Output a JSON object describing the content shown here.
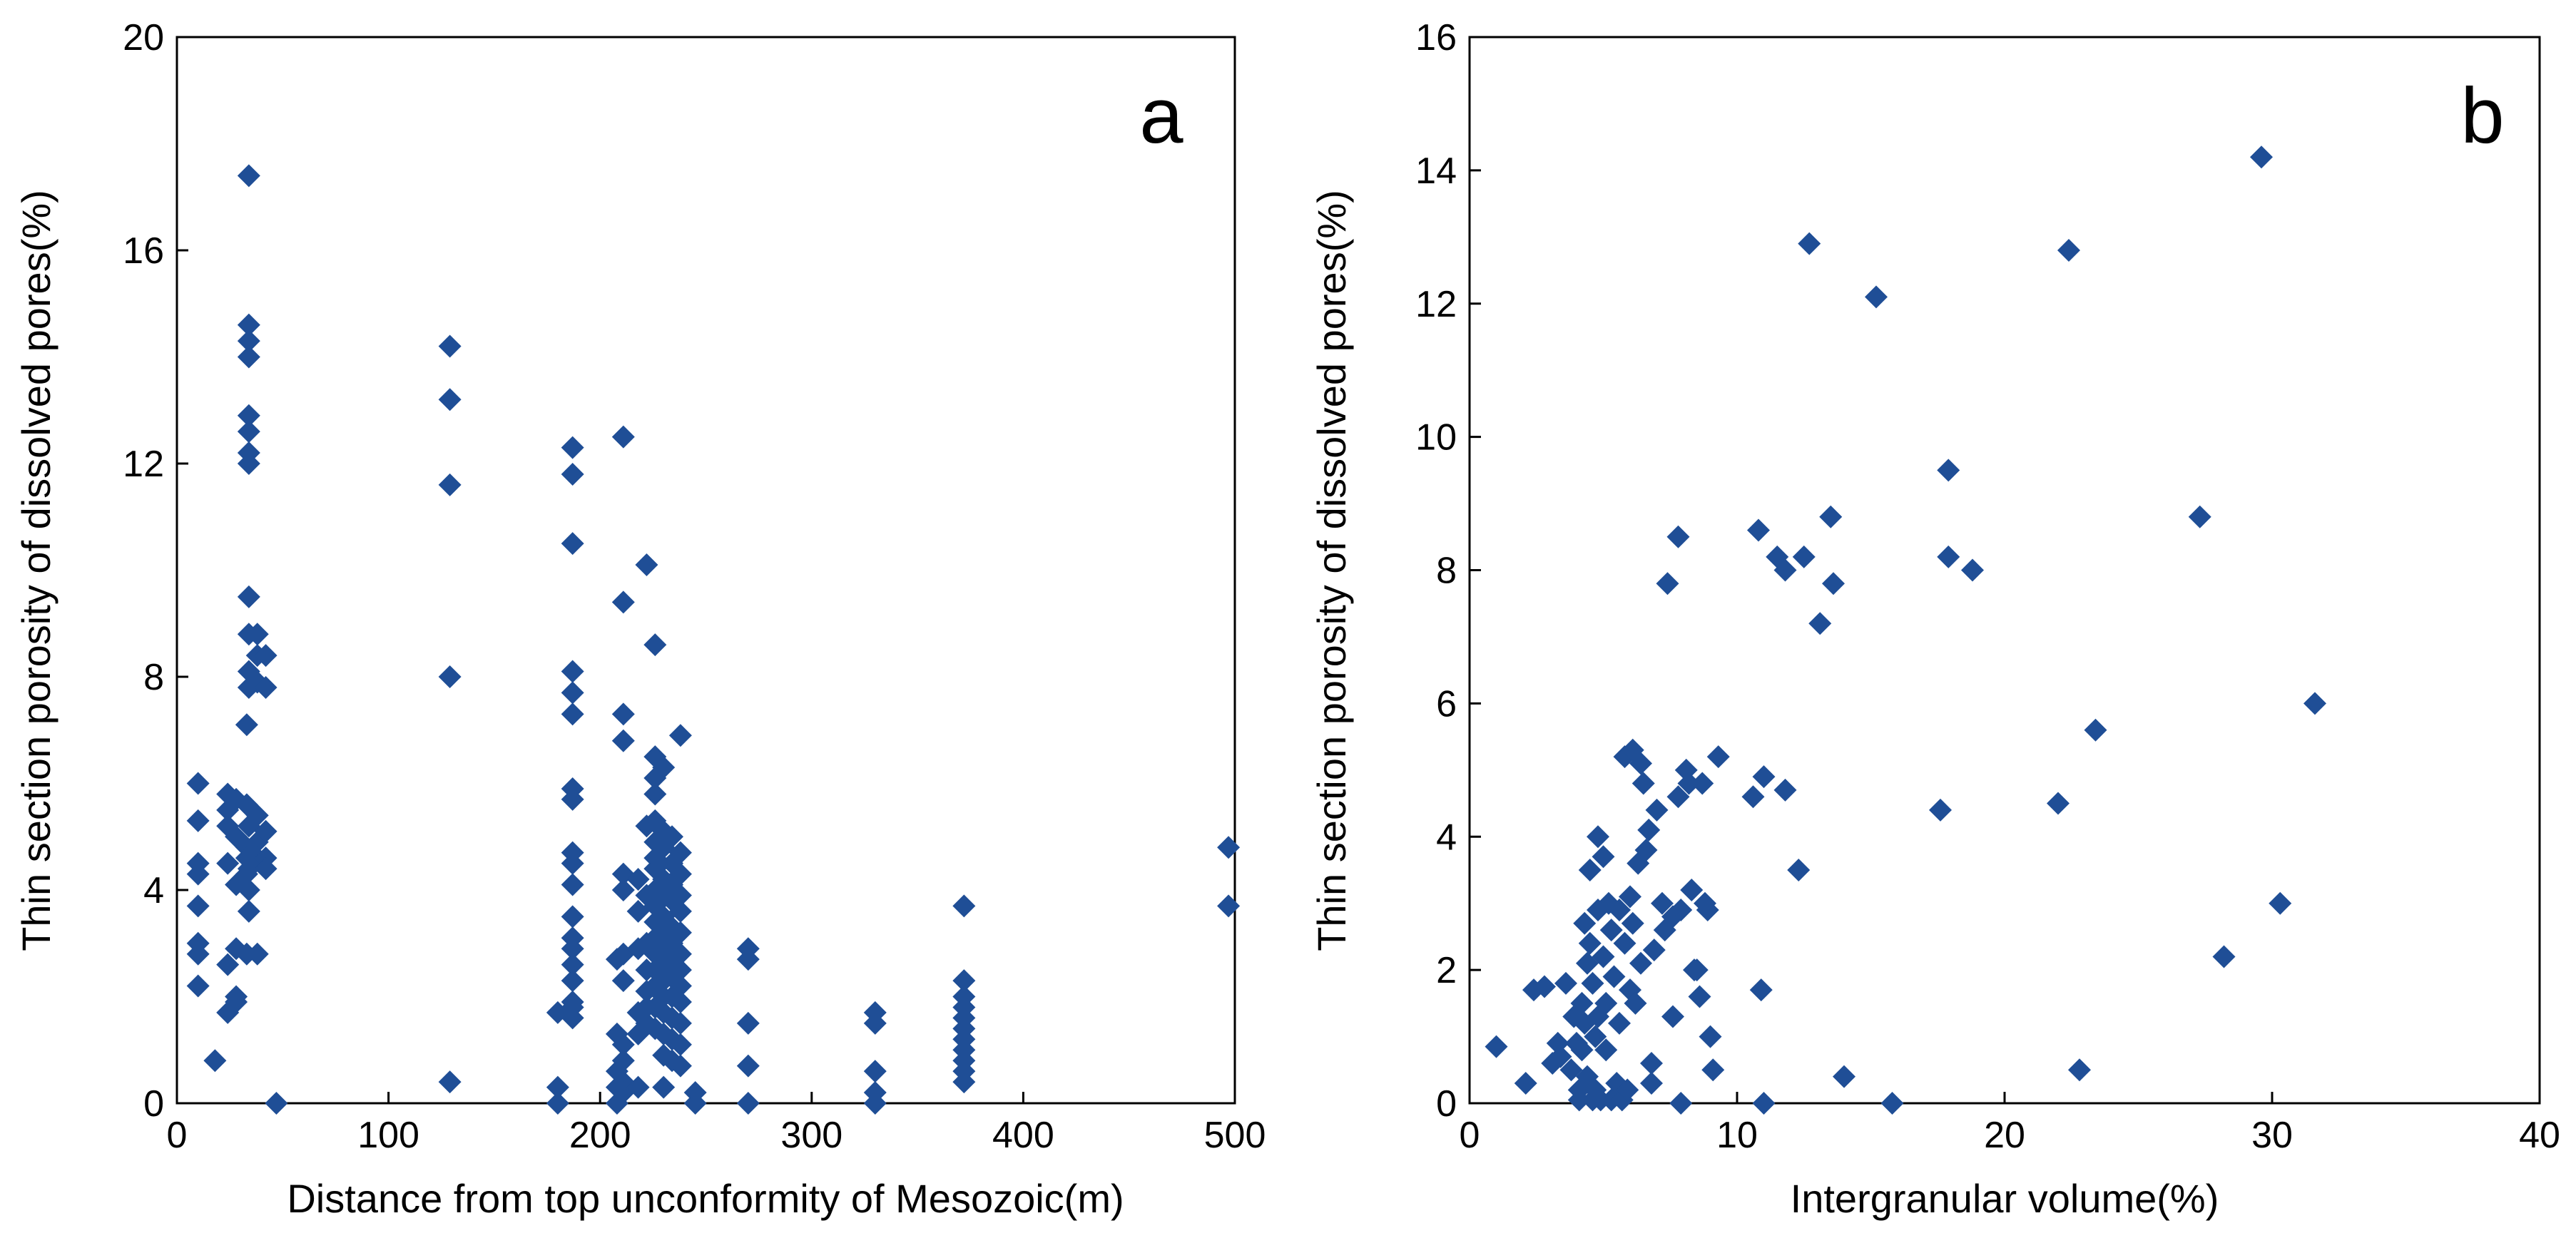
{
  "chart_data": [
    {
      "type": "scatter",
      "panel_label": "a",
      "title": "",
      "xlabel": "Distance from top unconformity of Mesozoic(m)",
      "ylabel": "Thin section porosity of dissolved pores(%)",
      "xlim": [
        0,
        500
      ],
      "ylim": [
        0,
        20
      ],
      "xticks": [
        0,
        100,
        200,
        300,
        400,
        500
      ],
      "yticks": [
        0,
        4,
        8,
        12,
        16,
        20
      ],
      "marker": "diamond",
      "color": "#1f4e96",
      "grid": false,
      "points": [
        [
          10,
          6.0
        ],
        [
          10,
          5.3
        ],
        [
          10,
          4.5
        ],
        [
          10,
          4.3
        ],
        [
          10,
          3.7
        ],
        [
          10,
          3.0
        ],
        [
          10,
          2.8
        ],
        [
          10,
          2.2
        ],
        [
          18,
          0.8
        ],
        [
          24,
          5.8
        ],
        [
          24,
          5.5
        ],
        [
          24,
          5.2
        ],
        [
          24,
          4.5
        ],
        [
          24,
          2.6
        ],
        [
          24,
          1.7
        ],
        [
          28,
          5.7
        ],
        [
          28,
          5.0
        ],
        [
          28,
          4.1
        ],
        [
          28,
          2.9
        ],
        [
          28,
          2.0
        ],
        [
          28,
          1.9
        ],
        [
          33,
          7.1
        ],
        [
          33,
          5.6
        ],
        [
          33,
          4.8
        ],
        [
          33,
          4.6
        ],
        [
          33,
          4.3
        ],
        [
          33,
          2.8
        ],
        [
          34,
          17.4
        ],
        [
          34,
          14.6
        ],
        [
          34,
          14.3
        ],
        [
          34,
          14.0
        ],
        [
          34,
          12.9
        ],
        [
          34,
          12.6
        ],
        [
          34,
          12.2
        ],
        [
          34,
          12.0
        ],
        [
          34,
          9.5
        ],
        [
          34,
          8.8
        ],
        [
          34,
          8.1
        ],
        [
          34,
          7.8
        ],
        [
          34,
          5.2
        ],
        [
          34,
          4.4
        ],
        [
          34,
          4.0
        ],
        [
          34,
          3.6
        ],
        [
          38,
          8.8
        ],
        [
          38,
          8.4
        ],
        [
          38,
          7.9
        ],
        [
          38,
          5.4
        ],
        [
          38,
          4.9
        ],
        [
          38,
          4.6
        ],
        [
          38,
          2.8
        ],
        [
          42,
          8.4
        ],
        [
          42,
          7.8
        ],
        [
          42,
          5.1
        ],
        [
          42,
          4.6
        ],
        [
          42,
          4.4
        ],
        [
          47,
          0.0
        ],
        [
          129,
          14.2
        ],
        [
          129,
          13.2
        ],
        [
          129,
          11.6
        ],
        [
          129,
          8.0
        ],
        [
          129,
          0.4
        ],
        [
          180,
          1.7
        ],
        [
          180,
          0.3
        ],
        [
          180,
          0.0
        ],
        [
          187,
          12.3
        ],
        [
          187,
          11.8
        ],
        [
          187,
          10.5
        ],
        [
          187,
          8.1
        ],
        [
          187,
          7.7
        ],
        [
          187,
          7.3
        ],
        [
          187,
          5.9
        ],
        [
          187,
          5.7
        ],
        [
          187,
          4.7
        ],
        [
          187,
          4.5
        ],
        [
          187,
          4.1
        ],
        [
          187,
          3.5
        ],
        [
          187,
          3.1
        ],
        [
          187,
          2.9
        ],
        [
          187,
          2.6
        ],
        [
          187,
          2.3
        ],
        [
          187,
          1.9
        ],
        [
          187,
          1.8
        ],
        [
          187,
          1.6
        ],
        [
          208,
          2.7
        ],
        [
          208,
          1.3
        ],
        [
          208,
          0.6
        ],
        [
          208,
          0.3
        ],
        [
          208,
          0.0
        ],
        [
          211,
          12.5
        ],
        [
          211,
          9.4
        ],
        [
          211,
          7.3
        ],
        [
          211,
          6.8
        ],
        [
          211,
          4.3
        ],
        [
          211,
          4.0
        ],
        [
          211,
          2.8
        ],
        [
          211,
          2.3
        ],
        [
          211,
          1.1
        ],
        [
          211,
          0.8
        ],
        [
          211,
          0.4
        ],
        [
          211,
          0.2
        ],
        [
          218,
          4.2
        ],
        [
          218,
          3.6
        ],
        [
          218,
          2.9
        ],
        [
          218,
          1.7
        ],
        [
          218,
          1.3
        ],
        [
          218,
          0.3
        ],
        [
          222,
          10.1
        ],
        [
          222,
          5.2
        ],
        [
          222,
          3.9
        ],
        [
          222,
          3.0
        ],
        [
          222,
          2.5
        ],
        [
          222,
          2.1
        ],
        [
          222,
          1.8
        ],
        [
          222,
          1.5
        ],
        [
          226,
          8.6
        ],
        [
          226,
          6.5
        ],
        [
          226,
          6.1
        ],
        [
          226,
          5.8
        ],
        [
          226,
          5.3
        ],
        [
          226,
          4.9
        ],
        [
          226,
          4.6
        ],
        [
          226,
          4.4
        ],
        [
          226,
          4.0
        ],
        [
          226,
          3.7
        ],
        [
          226,
          3.4
        ],
        [
          226,
          3.1
        ],
        [
          226,
          2.8
        ],
        [
          226,
          2.5
        ],
        [
          226,
          2.2
        ],
        [
          226,
          1.8
        ],
        [
          226,
          1.4
        ],
        [
          230,
          6.3
        ],
        [
          230,
          5.1
        ],
        [
          230,
          4.8
        ],
        [
          230,
          4.2
        ],
        [
          230,
          3.9
        ],
        [
          230,
          3.5
        ],
        [
          230,
          3.2
        ],
        [
          230,
          2.9
        ],
        [
          230,
          2.6
        ],
        [
          230,
          2.3
        ],
        [
          230,
          2.0
        ],
        [
          230,
          1.7
        ],
        [
          230,
          1.3
        ],
        [
          230,
          0.9
        ],
        [
          230,
          0.3
        ],
        [
          234,
          5.0
        ],
        [
          234,
          4.5
        ],
        [
          234,
          4.1
        ],
        [
          234,
          3.8
        ],
        [
          234,
          3.3
        ],
        [
          234,
          3.0
        ],
        [
          234,
          2.7
        ],
        [
          234,
          2.4
        ],
        [
          234,
          2.0
        ],
        [
          234,
          1.6
        ],
        [
          234,
          1.2
        ],
        [
          234,
          0.8
        ],
        [
          238,
          6.9
        ],
        [
          238,
          4.7
        ],
        [
          238,
          4.3
        ],
        [
          238,
          3.9
        ],
        [
          238,
          3.6
        ],
        [
          238,
          3.2
        ],
        [
          238,
          2.8
        ],
        [
          238,
          2.5
        ],
        [
          238,
          2.2
        ],
        [
          238,
          1.9
        ],
        [
          238,
          1.5
        ],
        [
          238,
          1.1
        ],
        [
          238,
          0.7
        ],
        [
          245,
          0.2
        ],
        [
          245,
          0.0
        ],
        [
          270,
          2.9
        ],
        [
          270,
          2.7
        ],
        [
          270,
          1.5
        ],
        [
          270,
          0.7
        ],
        [
          270,
          0.0
        ],
        [
          330,
          1.7
        ],
        [
          330,
          1.5
        ],
        [
          330,
          0.6
        ],
        [
          330,
          0.2
        ],
        [
          330,
          0.0
        ],
        [
          372,
          3.7
        ],
        [
          372,
          2.3
        ],
        [
          372,
          2.0
        ],
        [
          372,
          1.8
        ],
        [
          372,
          1.6
        ],
        [
          372,
          1.4
        ],
        [
          372,
          1.2
        ],
        [
          372,
          1.0
        ],
        [
          372,
          0.8
        ],
        [
          372,
          0.6
        ],
        [
          372,
          0.4
        ],
        [
          497,
          4.8
        ],
        [
          497,
          3.7
        ]
      ]
    },
    {
      "type": "scatter",
      "panel_label": "b",
      "title": "",
      "xlabel": "Intergranular volume(%)",
      "ylabel": "Thin section porosity of dissolved pores(%)",
      "xlim": [
        0,
        40
      ],
      "ylim": [
        0,
        16
      ],
      "xticks": [
        0,
        10,
        20,
        30,
        40
      ],
      "yticks": [
        0,
        2,
        4,
        6,
        8,
        10,
        12,
        14,
        16
      ],
      "marker": "diamond",
      "color": "#1f4e96",
      "grid": false,
      "points": [
        [
          1.0,
          0.85
        ],
        [
          2.1,
          0.3
        ],
        [
          2.4,
          1.7
        ],
        [
          2.8,
          1.75
        ],
        [
          3.1,
          0.6
        ],
        [
          3.3,
          0.9
        ],
        [
          3.4,
          0.7
        ],
        [
          3.6,
          1.8
        ],
        [
          3.8,
          0.5
        ],
        [
          3.9,
          1.3
        ],
        [
          4.0,
          0.9
        ],
        [
          4.1,
          0.2
        ],
        [
          4.1,
          0.05
        ],
        [
          4.2,
          1.5
        ],
        [
          4.2,
          0.8
        ],
        [
          4.3,
          2.7
        ],
        [
          4.3,
          1.2
        ],
        [
          4.4,
          2.1
        ],
        [
          4.4,
          0.4
        ],
        [
          4.5,
          3.5
        ],
        [
          4.5,
          2.4
        ],
        [
          4.6,
          1.8
        ],
        [
          4.6,
          0.05
        ],
        [
          4.7,
          1.0
        ],
        [
          4.7,
          0.2
        ],
        [
          4.8,
          4.0
        ],
        [
          4.8,
          2.9
        ],
        [
          4.8,
          1.3
        ],
        [
          4.9,
          0.05
        ],
        [
          5.0,
          3.7
        ],
        [
          5.0,
          2.2
        ],
        [
          5.1,
          1.5
        ],
        [
          5.1,
          0.8
        ],
        [
          5.2,
          3.0
        ],
        [
          5.3,
          0.05
        ],
        [
          5.3,
          2.6
        ],
        [
          5.4,
          1.9
        ],
        [
          5.5,
          0.3
        ],
        [
          5.6,
          2.9
        ],
        [
          5.6,
          1.2
        ],
        [
          5.7,
          0.05
        ],
        [
          5.8,
          5.2
        ],
        [
          5.8,
          2.4
        ],
        [
          5.9,
          0.2
        ],
        [
          6.0,
          3.1
        ],
        [
          6.0,
          1.7
        ],
        [
          6.1,
          2.7
        ],
        [
          6.1,
          5.3
        ],
        [
          6.2,
          1.5
        ],
        [
          6.3,
          3.6
        ],
        [
          6.4,
          5.1
        ],
        [
          6.4,
          2.1
        ],
        [
          6.5,
          4.8
        ],
        [
          6.6,
          3.8
        ],
        [
          6.7,
          4.1
        ],
        [
          6.8,
          0.6
        ],
        [
          6.8,
          0.3
        ],
        [
          6.9,
          2.3
        ],
        [
          7.0,
          4.4
        ],
        [
          7.2,
          3.0
        ],
        [
          7.3,
          2.6
        ],
        [
          7.4,
          7.8
        ],
        [
          7.6,
          1.3
        ],
        [
          7.6,
          2.8
        ],
        [
          7.8,
          8.5
        ],
        [
          7.8,
          4.6
        ],
        [
          7.9,
          2.9
        ],
        [
          7.9,
          0.0
        ],
        [
          8.1,
          5.0
        ],
        [
          8.2,
          4.8
        ],
        [
          8.3,
          3.2
        ],
        [
          8.4,
          2.0
        ],
        [
          8.5,
          2.0
        ],
        [
          8.6,
          1.6
        ],
        [
          8.7,
          4.8
        ],
        [
          8.8,
          3.0
        ],
        [
          8.9,
          2.9
        ],
        [
          9.0,
          1.0
        ],
        [
          9.1,
          0.5
        ],
        [
          9.3,
          5.2
        ],
        [
          10.6,
          4.6
        ],
        [
          10.8,
          8.6
        ],
        [
          10.9,
          1.7
        ],
        [
          11.0,
          4.9
        ],
        [
          11.0,
          0.0
        ],
        [
          11.5,
          8.2
        ],
        [
          11.8,
          8.0
        ],
        [
          11.8,
          4.7
        ],
        [
          12.3,
          3.5
        ],
        [
          12.5,
          8.2
        ],
        [
          12.7,
          12.9
        ],
        [
          13.1,
          7.2
        ],
        [
          13.5,
          8.8
        ],
        [
          13.6,
          7.8
        ],
        [
          14.0,
          0.4
        ],
        [
          15.2,
          12.1
        ],
        [
          15.8,
          0.0
        ],
        [
          17.6,
          4.4
        ],
        [
          17.9,
          9.5
        ],
        [
          17.9,
          8.2
        ],
        [
          18.8,
          8.0
        ],
        [
          22.0,
          4.5
        ],
        [
          22.4,
          12.8
        ],
        [
          22.8,
          0.5
        ],
        [
          23.4,
          5.6
        ],
        [
          27.3,
          8.8
        ],
        [
          28.2,
          2.2
        ],
        [
          29.6,
          14.2
        ],
        [
          30.3,
          3.0
        ],
        [
          31.6,
          6.0
        ]
      ]
    }
  ]
}
